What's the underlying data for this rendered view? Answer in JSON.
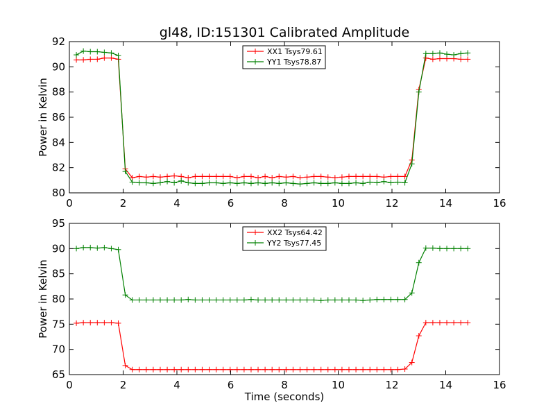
{
  "figure": {
    "title": "gl48, ID:151301 Calibrated Amplitude"
  },
  "chart_data": [
    {
      "type": "line",
      "xlabel": "",
      "ylabel": "Power in Kelvin",
      "xlim": [
        0,
        16
      ],
      "ylim": [
        80,
        92
      ],
      "xticks": [
        0,
        2,
        4,
        6,
        8,
        10,
        12,
        14,
        16
      ],
      "yticks": [
        80,
        82,
        84,
        86,
        88,
        90,
        92
      ],
      "grid": false,
      "legend_position": "upper center",
      "marker": "+",
      "x": [
        0.26,
        0.52,
        0.78,
        1.04,
        1.3,
        1.56,
        1.82,
        2.08,
        2.34,
        2.6,
        2.86,
        3.12,
        3.38,
        3.64,
        3.9,
        4.16,
        4.42,
        4.68,
        4.94,
        5.2,
        5.46,
        5.72,
        5.98,
        6.24,
        6.5,
        6.76,
        7.02,
        7.28,
        7.54,
        7.8,
        8.06,
        8.32,
        8.58,
        8.84,
        9.1,
        9.36,
        9.62,
        9.88,
        10.14,
        10.4,
        10.66,
        10.92,
        11.18,
        11.44,
        11.7,
        11.96,
        12.22,
        12.48,
        12.74,
        13.0,
        13.26,
        13.52,
        13.78,
        14.04,
        14.3,
        14.56,
        14.82
      ],
      "series": [
        {
          "name": "XX1 Tsys79.61",
          "color": "#ff0000",
          "values": [
            90.55,
            90.55,
            90.6,
            90.6,
            90.7,
            90.7,
            90.6,
            81.9,
            81.2,
            81.3,
            81.25,
            81.3,
            81.25,
            81.3,
            81.35,
            81.3,
            81.2,
            81.3,
            81.3,
            81.3,
            81.3,
            81.3,
            81.3,
            81.2,
            81.3,
            81.3,
            81.2,
            81.3,
            81.2,
            81.3,
            81.25,
            81.3,
            81.2,
            81.25,
            81.3,
            81.3,
            81.25,
            81.2,
            81.25,
            81.3,
            81.3,
            81.3,
            81.3,
            81.3,
            81.25,
            81.3,
            81.3,
            81.3,
            82.6,
            88.2,
            90.7,
            90.6,
            90.65,
            90.65,
            90.65,
            90.6,
            90.6
          ]
        },
        {
          "name": "YY1 Tsys78.87",
          "color": "#008000",
          "values": [
            90.95,
            91.25,
            91.2,
            91.2,
            91.15,
            91.1,
            90.9,
            81.7,
            80.85,
            80.8,
            80.8,
            80.75,
            80.8,
            80.9,
            80.8,
            80.95,
            80.8,
            80.75,
            80.75,
            80.8,
            80.8,
            80.75,
            80.8,
            80.75,
            80.8,
            80.75,
            80.8,
            80.75,
            80.8,
            80.75,
            80.8,
            80.75,
            80.7,
            80.75,
            80.8,
            80.75,
            80.75,
            80.8,
            80.75,
            80.75,
            80.8,
            80.75,
            80.85,
            80.8,
            80.9,
            80.8,
            80.85,
            80.8,
            82.3,
            88.0,
            91.05,
            91.05,
            91.1,
            91.0,
            90.95,
            91.05,
            91.1
          ]
        }
      ]
    },
    {
      "type": "line",
      "xlabel": "Time (seconds)",
      "ylabel": "Power in Kelvin",
      "xlim": [
        0,
        16
      ],
      "ylim": [
        65,
        95
      ],
      "xticks": [
        0,
        2,
        4,
        6,
        8,
        10,
        12,
        14,
        16
      ],
      "yticks": [
        65,
        70,
        75,
        80,
        85,
        90,
        95
      ],
      "grid": false,
      "legend_position": "upper center",
      "marker": "+",
      "x": [
        0.26,
        0.52,
        0.78,
        1.04,
        1.3,
        1.56,
        1.82,
        2.08,
        2.34,
        2.6,
        2.86,
        3.12,
        3.38,
        3.64,
        3.9,
        4.16,
        4.42,
        4.68,
        4.94,
        5.2,
        5.46,
        5.72,
        5.98,
        6.24,
        6.5,
        6.76,
        7.02,
        7.28,
        7.54,
        7.8,
        8.06,
        8.32,
        8.58,
        8.84,
        9.1,
        9.36,
        9.62,
        9.88,
        10.14,
        10.4,
        10.66,
        10.92,
        11.18,
        11.44,
        11.7,
        11.96,
        12.22,
        12.48,
        12.74,
        13.0,
        13.26,
        13.52,
        13.78,
        14.04,
        14.3,
        14.56,
        14.82
      ],
      "series": [
        {
          "name": "XX2 Tsys64.42",
          "color": "#ff0000",
          "values": [
            75.2,
            75.3,
            75.3,
            75.3,
            75.3,
            75.3,
            75.2,
            66.8,
            66.0,
            66.0,
            66.0,
            66.0,
            66.0,
            66.0,
            66.0,
            66.0,
            66.0,
            66.0,
            66.0,
            66.0,
            66.0,
            66.0,
            66.0,
            66.0,
            66.0,
            66.0,
            66.0,
            66.0,
            66.0,
            66.0,
            66.0,
            66.0,
            66.0,
            66.0,
            66.0,
            66.0,
            66.0,
            66.0,
            66.0,
            66.0,
            66.0,
            66.0,
            66.0,
            66.0,
            66.0,
            66.0,
            66.0,
            66.1,
            67.4,
            72.7,
            75.3,
            75.3,
            75.3,
            75.3,
            75.3,
            75.3,
            75.3
          ]
        },
        {
          "name": "YY2 Tsys77.45",
          "color": "#008000",
          "values": [
            90.0,
            90.2,
            90.2,
            90.1,
            90.2,
            90.0,
            89.8,
            80.8,
            79.8,
            79.8,
            79.8,
            79.8,
            79.8,
            79.8,
            79.8,
            79.8,
            79.9,
            79.8,
            79.8,
            79.8,
            79.8,
            79.8,
            79.8,
            79.8,
            79.8,
            79.9,
            79.8,
            79.8,
            79.8,
            79.8,
            79.8,
            79.8,
            79.8,
            79.8,
            79.8,
            79.7,
            79.8,
            79.8,
            79.8,
            79.8,
            79.8,
            79.7,
            79.8,
            79.9,
            79.9,
            79.9,
            79.9,
            79.9,
            81.2,
            87.2,
            90.1,
            90.1,
            90.0,
            90.0,
            90.0,
            90.0,
            90.0
          ]
        }
      ]
    }
  ]
}
